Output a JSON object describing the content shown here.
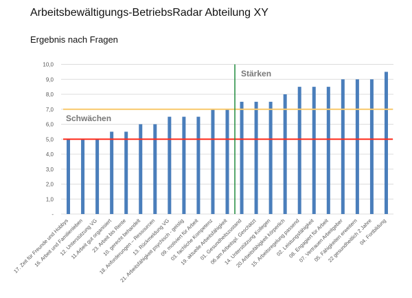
{
  "chart_data": {
    "type": "bar",
    "title": "Arbeitsbewältigungs-BetriebsRadar Abteilung XY",
    "subtitle": "Ergebnis nach Fragen",
    "xlabel": "",
    "ylabel": "",
    "ylim": [
      0,
      10
    ],
    "yticks": [
      "-",
      "1,0",
      "2,0",
      "3,0",
      "4,0",
      "5,0",
      "6,0",
      "7,0",
      "8,0",
      "9,0",
      "10,0"
    ],
    "grid": true,
    "categories": [
      "17. Zeit für Freunde und Hobbys",
      "16. Arbeit und Familienleben",
      "12. Unterstützung VG",
      "11.Arbeit gut organisiert",
      "23. Arbeit bis Rente",
      "10. gerecht behandelt",
      "18. Anforderungen – Ressourcen",
      "13. Rückmeldung VG",
      "21. Arbeitsfähigkeit psychisch - geistig",
      "09. motiviert für Arbeit",
      "03. fachliche Kompetenz",
      "19. aktuelle Arbeitsfähigkeit",
      "01. Gesundheitszustand",
      "06.am Arbeitspl. Geschätzt",
      "14. Unterstützung Kollegen",
      "20.Arbeitsfähigkeit körperlich",
      "15. Arbeitsregelung passend",
      "02. Leistungsfähigkeit",
      "08. Engagiert für Arbeit",
      "07. Vertrauen Arbeitgeber",
      "05. Fähigkeiten erweitern",
      "22 gesundheitlich 2 Jahre",
      "04. Fortbildung"
    ],
    "values": [
      5,
      5,
      5,
      5.5,
      5.5,
      6,
      6,
      6.5,
      6.5,
      6.5,
      7,
      7,
      7.5,
      7.5,
      7.5,
      8,
      8.5,
      8.5,
      8.5,
      9,
      9,
      9,
      9.5
    ],
    "reference_lines": [
      {
        "type": "horizontal",
        "value": 5,
        "color": "#ff2a1a"
      },
      {
        "type": "horizontal",
        "value": 7,
        "color": "#f9c86a"
      },
      {
        "type": "vertical",
        "after_index": 11,
        "color": "#1e8a3c"
      }
    ],
    "annotations": [
      {
        "text": "Schwächen",
        "near": "left, above 6.0"
      },
      {
        "text": "Stärken",
        "near": "right of divider, top"
      }
    ],
    "bar_color": "#4a7ebb"
  }
}
